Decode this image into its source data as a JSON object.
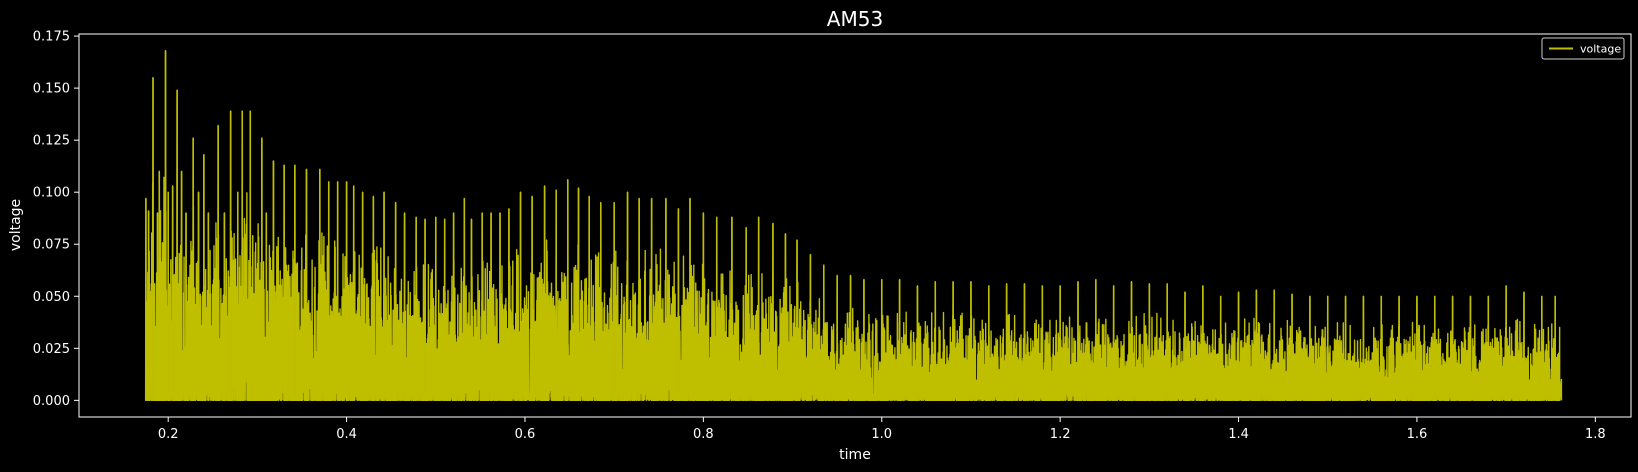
{
  "chart_data": {
    "type": "line",
    "title": "AM53",
    "xlabel": "time",
    "ylabel": "voltage",
    "xlim": [
      0.1,
      1.84
    ],
    "ylim": [
      -0.008,
      0.176
    ],
    "x_ticks": [
      0.2,
      0.4,
      0.6,
      0.8,
      1.0,
      1.2,
      1.4,
      1.6,
      1.8
    ],
    "x_tick_labels": [
      "0.2",
      "0.4",
      "0.6",
      "0.8",
      "1.0",
      "1.2",
      "1.4",
      "1.6",
      "1.8"
    ],
    "y_ticks": [
      0.0,
      0.025,
      0.05,
      0.075,
      0.1,
      0.125,
      0.15,
      0.175
    ],
    "y_tick_labels": [
      "0.000",
      "0.025",
      "0.050",
      "0.075",
      "0.100",
      "0.125",
      "0.150",
      "0.175"
    ],
    "grid": false,
    "legend": {
      "placement": "top-right",
      "entries": [
        {
          "label": "voltage",
          "color": "#bfbf00"
        }
      ]
    },
    "colors": {
      "background": "#000000",
      "axes": "#ffffff",
      "series": "#bfbf00"
    },
    "series": [
      {
        "name": "voltage",
        "x_start": 0.175,
        "x_end": 1.76,
        "peaks": [
          [
            0.175,
            0.097
          ],
          [
            0.178,
            0.091
          ],
          [
            0.183,
            0.155
          ],
          [
            0.188,
            0.09
          ],
          [
            0.19,
            0.11
          ],
          [
            0.197,
            0.168
          ],
          [
            0.2,
            0.1
          ],
          [
            0.205,
            0.103
          ],
          [
            0.21,
            0.149
          ],
          [
            0.215,
            0.11
          ],
          [
            0.22,
            0.09
          ],
          [
            0.228,
            0.126
          ],
          [
            0.234,
            0.1
          ],
          [
            0.24,
            0.118
          ],
          [
            0.245,
            0.09
          ],
          [
            0.256,
            0.132
          ],
          [
            0.263,
            0.09
          ],
          [
            0.27,
            0.139
          ],
          [
            0.278,
            0.1
          ],
          [
            0.283,
            0.139
          ],
          [
            0.292,
            0.139
          ],
          [
            0.305,
            0.126
          ],
          [
            0.31,
            0.09
          ],
          [
            0.318,
            0.115
          ],
          [
            0.33,
            0.113
          ],
          [
            0.342,
            0.113
          ],
          [
            0.355,
            0.111
          ],
          [
            0.37,
            0.111
          ],
          [
            0.38,
            0.105
          ],
          [
            0.39,
            0.105
          ],
          [
            0.4,
            0.105
          ],
          [
            0.408,
            0.103
          ],
          [
            0.418,
            0.1
          ],
          [
            0.43,
            0.098
          ],
          [
            0.442,
            0.1
          ],
          [
            0.455,
            0.095
          ],
          [
            0.465,
            0.09
          ],
          [
            0.478,
            0.088
          ],
          [
            0.488,
            0.087
          ],
          [
            0.5,
            0.088
          ],
          [
            0.51,
            0.087
          ],
          [
            0.52,
            0.09
          ],
          [
            0.532,
            0.097
          ],
          [
            0.54,
            0.087
          ],
          [
            0.552,
            0.09
          ],
          [
            0.562,
            0.09
          ],
          [
            0.572,
            0.09
          ],
          [
            0.582,
            0.092
          ],
          [
            0.595,
            0.1
          ],
          [
            0.608,
            0.098
          ],
          [
            0.622,
            0.103
          ],
          [
            0.635,
            0.101
          ],
          [
            0.648,
            0.106
          ],
          [
            0.66,
            0.102
          ],
          [
            0.672,
            0.098
          ],
          [
            0.685,
            0.095
          ],
          [
            0.7,
            0.095
          ],
          [
            0.715,
            0.1
          ],
          [
            0.728,
            0.097
          ],
          [
            0.742,
            0.097
          ],
          [
            0.758,
            0.097
          ],
          [
            0.772,
            0.092
          ],
          [
            0.785,
            0.097
          ],
          [
            0.8,
            0.09
          ],
          [
            0.815,
            0.088
          ],
          [
            0.832,
            0.088
          ],
          [
            0.848,
            0.083
          ],
          [
            0.862,
            0.088
          ],
          [
            0.878,
            0.085
          ],
          [
            0.892,
            0.08
          ],
          [
            0.905,
            0.077
          ],
          [
            0.92,
            0.07
          ],
          [
            0.935,
            0.065
          ],
          [
            0.95,
            0.06
          ],
          [
            0.965,
            0.06
          ],
          [
            0.98,
            0.058
          ],
          [
            1.0,
            0.058
          ],
          [
            1.02,
            0.058
          ],
          [
            1.04,
            0.055
          ],
          [
            1.06,
            0.057
          ],
          [
            1.08,
            0.057
          ],
          [
            1.1,
            0.057
          ],
          [
            1.12,
            0.055
          ],
          [
            1.14,
            0.056
          ],
          [
            1.16,
            0.056
          ],
          [
            1.18,
            0.055
          ],
          [
            1.2,
            0.055
          ],
          [
            1.22,
            0.057
          ],
          [
            1.24,
            0.058
          ],
          [
            1.26,
            0.055
          ],
          [
            1.28,
            0.057
          ],
          [
            1.3,
            0.056
          ],
          [
            1.32,
            0.056
          ],
          [
            1.34,
            0.052
          ],
          [
            1.36,
            0.055
          ],
          [
            1.38,
            0.05
          ],
          [
            1.4,
            0.052
          ],
          [
            1.42,
            0.053
          ],
          [
            1.44,
            0.053
          ],
          [
            1.46,
            0.051
          ],
          [
            1.48,
            0.05
          ],
          [
            1.5,
            0.05
          ],
          [
            1.52,
            0.05
          ],
          [
            1.54,
            0.05
          ],
          [
            1.56,
            0.05
          ],
          [
            1.58,
            0.05
          ],
          [
            1.6,
            0.05
          ],
          [
            1.62,
            0.05
          ],
          [
            1.64,
            0.05
          ],
          [
            1.66,
            0.05
          ],
          [
            1.68,
            0.05
          ],
          [
            1.7,
            0.055
          ],
          [
            1.72,
            0.052
          ],
          [
            1.74,
            0.05
          ],
          [
            1.755,
            0.05
          ]
        ]
      }
    ]
  }
}
